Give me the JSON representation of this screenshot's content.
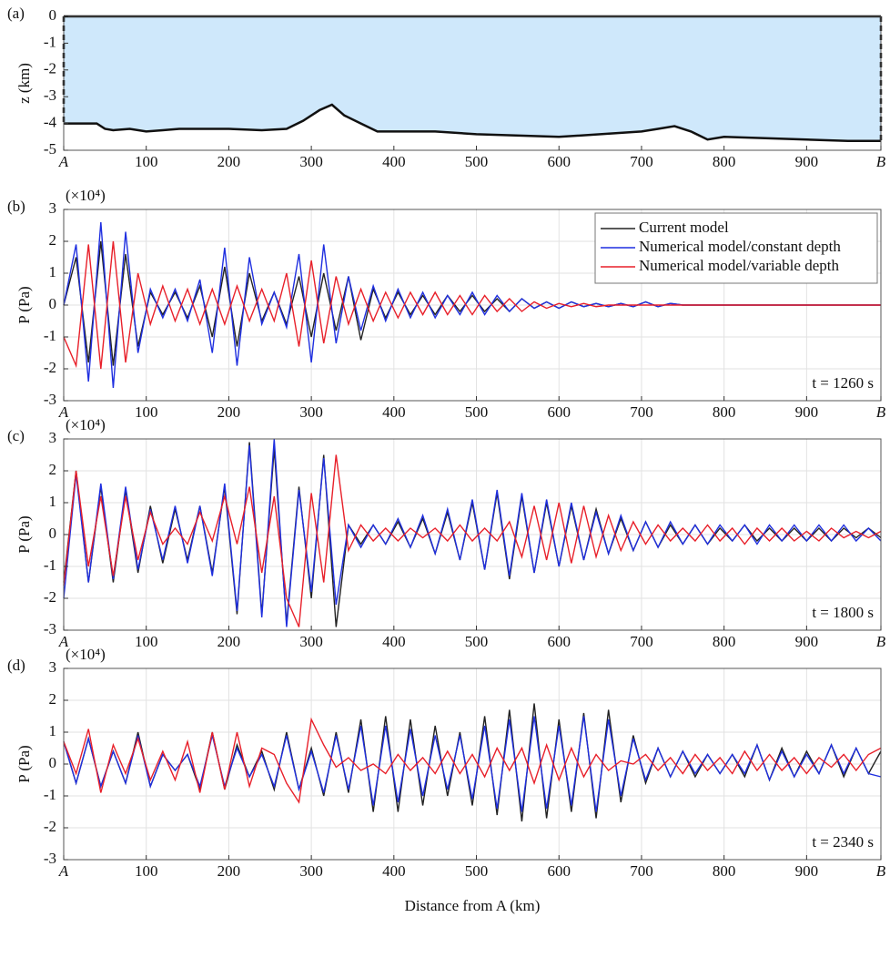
{
  "chart_data": [
    {
      "type": "area",
      "panel_label": "(a)",
      "ylabel": "z (km)",
      "color": "#cfe8fb",
      "grid": false,
      "xlim": [
        0,
        990
      ],
      "ylim": [
        -5,
        0
      ],
      "yticks": [
        -5,
        -4,
        -3,
        -2,
        -1,
        0
      ],
      "xticks": [
        {
          "value": 0,
          "label": "A"
        },
        100,
        200,
        300,
        400,
        500,
        600,
        700,
        800,
        900,
        {
          "value": 990,
          "label": "B"
        }
      ],
      "x": [
        0,
        40,
        50,
        60,
        80,
        100,
        120,
        140,
        200,
        240,
        270,
        290,
        310,
        325,
        340,
        360,
        380,
        400,
        450,
        500,
        600,
        650,
        700,
        720,
        740,
        760,
        780,
        800,
        850,
        900,
        950,
        990
      ],
      "values": [
        -4.0,
        -4.0,
        -4.2,
        -4.25,
        -4.2,
        -4.3,
        -4.25,
        -4.2,
        -4.2,
        -4.25,
        -4.2,
        -3.9,
        -3.5,
        -3.3,
        -3.7,
        -4.0,
        -4.3,
        -4.3,
        -4.3,
        -4.4,
        -4.5,
        -4.4,
        -4.3,
        -4.2,
        -4.1,
        -4.3,
        -4.6,
        -4.5,
        -4.55,
        -4.6,
        -4.65,
        -4.65
      ]
    },
    {
      "type": "line",
      "panel_label": "(b)",
      "ylabel": "P (Pa)",
      "y_multiplier": "(×10⁴)",
      "annotation": "t = 1260 s",
      "grid": true,
      "legend": "upper right",
      "xlim": [
        0,
        990
      ],
      "ylim": [
        -3,
        3
      ],
      "yticks": [
        -3,
        -2,
        -1,
        0,
        1,
        2,
        3
      ],
      "xticks": [
        {
          "value": 0,
          "label": "A"
        },
        100,
        200,
        300,
        400,
        500,
        600,
        700,
        800,
        900,
        {
          "value": 990,
          "label": "B"
        }
      ],
      "x": [
        0,
        15,
        30,
        45,
        60,
        75,
        90,
        105,
        120,
        135,
        150,
        165,
        180,
        195,
        210,
        225,
        240,
        255,
        270,
        285,
        300,
        315,
        330,
        345,
        360,
        375,
        390,
        405,
        420,
        435,
        450,
        465,
        480,
        495,
        510,
        525,
        540,
        555,
        570,
        585,
        600,
        615,
        630,
        645,
        660,
        675,
        690,
        705,
        720,
        735,
        750,
        765,
        780,
        795,
        810,
        825,
        840,
        855,
        870,
        885,
        900,
        915,
        930,
        945,
        960,
        975,
        990
      ],
      "series": [
        {
          "name": "Current model",
          "color": "#222222",
          "values": [
            0,
            1.5,
            -1.8,
            2.0,
            -1.9,
            1.6,
            -1.3,
            0.4,
            -0.3,
            0.4,
            -0.4,
            0.6,
            -1.0,
            1.2,
            -1.3,
            1.0,
            -0.5,
            0.4,
            -0.6,
            0.9,
            -1.0,
            1.0,
            -0.8,
            0.9,
            -1.1,
            0.5,
            -0.4,
            0.4,
            -0.3,
            0.3,
            -0.3,
            0.3,
            -0.2,
            0.3,
            -0.2,
            0.2,
            -0.2,
            0.2,
            -0.1,
            0.1,
            -0.1,
            0.1,
            -0.05,
            0.05,
            -0.05,
            0.05,
            -0.05,
            0.1,
            -0.05,
            0.05,
            0,
            0,
            0,
            0,
            0,
            0,
            0,
            0,
            0,
            0,
            0,
            0,
            0,
            0,
            0,
            0,
            0
          ]
        },
        {
          "name": "Numerical model/constant depth",
          "color": "#1f2fe0",
          "values": [
            0,
            1.9,
            -2.4,
            2.6,
            -2.6,
            2.3,
            -1.5,
            0.5,
            -0.4,
            0.5,
            -0.5,
            0.8,
            -1.5,
            1.8,
            -1.9,
            1.5,
            -0.6,
            0.4,
            -0.7,
            1.6,
            -1.8,
            1.9,
            -1.2,
            0.9,
            -0.8,
            0.6,
            -0.5,
            0.5,
            -0.4,
            0.4,
            -0.4,
            0.3,
            -0.3,
            0.4,
            -0.3,
            0.3,
            -0.2,
            0.2,
            -0.1,
            0.1,
            -0.1,
            0.1,
            -0.05,
            0.05,
            -0.05,
            0.05,
            -0.05,
            0.1,
            -0.05,
            0.05,
            0,
            0,
            0,
            0,
            0,
            0,
            0,
            0,
            0,
            0,
            0,
            0,
            0,
            0,
            0,
            0,
            0
          ]
        },
        {
          "name": "Numerical model/variable depth",
          "color": "#e8202a",
          "values": [
            -1.0,
            -1.9,
            1.9,
            -2.0,
            2.0,
            -1.8,
            1.0,
            -0.6,
            0.6,
            -0.5,
            0.5,
            -0.6,
            0.5,
            -0.6,
            0.6,
            -0.5,
            0.5,
            -0.5,
            1.0,
            -1.3,
            1.4,
            -1.2,
            0.9,
            -0.6,
            0.5,
            -0.5,
            0.4,
            -0.4,
            0.4,
            -0.3,
            0.4,
            -0.3,
            0.3,
            -0.3,
            0.3,
            -0.2,
            0.2,
            -0.2,
            0.1,
            -0.1,
            0.05,
            -0.05,
            0.05,
            -0.05,
            0,
            0,
            0,
            0,
            0,
            0,
            0,
            0,
            0,
            0,
            0,
            0,
            0,
            0,
            0,
            0,
            0,
            0,
            0,
            0,
            0,
            0,
            0
          ]
        }
      ]
    },
    {
      "type": "line",
      "panel_label": "(c)",
      "ylabel": "P (Pa)",
      "y_multiplier": "(×10⁴)",
      "annotation": "t = 1800 s",
      "grid": true,
      "xlim": [
        0,
        990
      ],
      "ylim": [
        -3,
        3
      ],
      "yticks": [
        -3,
        -2,
        -1,
        0,
        1,
        2,
        3
      ],
      "xticks": [
        {
          "value": 0,
          "label": "A"
        },
        100,
        200,
        300,
        400,
        500,
        600,
        700,
        800,
        900,
        {
          "value": 990,
          "label": "B"
        }
      ],
      "x": [
        0,
        15,
        30,
        45,
        60,
        75,
        90,
        105,
        120,
        135,
        150,
        165,
        180,
        195,
        210,
        225,
        240,
        255,
        270,
        285,
        300,
        315,
        330,
        345,
        360,
        375,
        390,
        405,
        420,
        435,
        450,
        465,
        480,
        495,
        510,
        525,
        540,
        555,
        570,
        585,
        600,
        615,
        630,
        645,
        660,
        675,
        690,
        705,
        720,
        735,
        750,
        765,
        780,
        795,
        810,
        825,
        840,
        855,
        870,
        885,
        900,
        915,
        930,
        945,
        960,
        975,
        990
      ],
      "series": [
        {
          "name": "Current model",
          "color": "#222222",
          "values": [
            -1.5,
            2.0,
            -1.5,
            1.5,
            -1.5,
            1.4,
            -1.2,
            0.9,
            -0.9,
            0.8,
            -0.8,
            0.9,
            -1.2,
            1.5,
            -2.5,
            2.9,
            -2.5,
            2.7,
            -2.8,
            1.5,
            -2.0,
            2.5,
            -2.9,
            0.3,
            -0.3,
            0.3,
            -0.3,
            0.4,
            -0.4,
            0.5,
            -0.6,
            0.7,
            -0.8,
            1.0,
            -1.1,
            1.3,
            -1.4,
            1.2,
            -1.2,
            1.0,
            -1.0,
            0.9,
            -0.8,
            0.8,
            -0.6,
            0.5,
            -0.5,
            0.4,
            -0.4,
            0.3,
            -0.3,
            0.3,
            -0.3,
            0.2,
            -0.2,
            0.3,
            -0.2,
            0.2,
            -0.2,
            0.2,
            -0.2,
            0.2,
            -0.2,
            0.2,
            -0.1,
            0.2,
            -0.1
          ]
        },
        {
          "name": "Numerical model/constant depth",
          "color": "#1f2fe0",
          "values": [
            -2.0,
            1.9,
            -1.5,
            1.6,
            -1.4,
            1.5,
            -1.1,
            0.8,
            -0.8,
            0.9,
            -0.9,
            0.9,
            -1.3,
            1.6,
            -2.4,
            2.8,
            -2.6,
            3.0,
            -2.9,
            1.4,
            -1.8,
            2.4,
            -2.2,
            0.3,
            -0.4,
            0.3,
            -0.3,
            0.5,
            -0.4,
            0.6,
            -0.6,
            0.8,
            -0.8,
            1.1,
            -1.1,
            1.4,
            -1.3,
            1.3,
            -1.2,
            1.1,
            -1.0,
            1.0,
            -0.8,
            0.7,
            -0.6,
            0.6,
            -0.5,
            0.4,
            -0.4,
            0.4,
            -0.3,
            0.3,
            -0.3,
            0.3,
            -0.2,
            0.3,
            -0.3,
            0.3,
            -0.2,
            0.3,
            -0.2,
            0.3,
            -0.2,
            0.3,
            -0.2,
            0.2,
            -0.2
          ]
        },
        {
          "name": "Numerical model/variable depth",
          "color": "#e8202a",
          "values": [
            -1.6,
            2.0,
            -1.0,
            1.2,
            -1.3,
            1.2,
            -0.8,
            0.7,
            -0.3,
            0.2,
            -0.3,
            0.7,
            -0.2,
            1.2,
            -0.3,
            1.5,
            -1.2,
            1.2,
            -2.0,
            -2.9,
            1.3,
            -1.5,
            2.5,
            -0.5,
            0.3,
            -0.2,
            0.2,
            -0.2,
            0.2,
            -0.1,
            0.2,
            -0.2,
            0.3,
            -0.2,
            0.2,
            -0.2,
            0.4,
            -0.7,
            0.9,
            -0.8,
            1.0,
            -0.9,
            0.9,
            -0.7,
            0.6,
            -0.5,
            0.4,
            -0.3,
            0.3,
            -0.2,
            0.2,
            -0.2,
            0.3,
            -0.2,
            0.2,
            -0.3,
            0.2,
            -0.2,
            0.2,
            -0.2,
            0.1,
            -0.2,
            0.2,
            -0.1,
            0.1,
            -0.1,
            0.1
          ]
        }
      ]
    },
    {
      "type": "line",
      "panel_label": "(d)",
      "ylabel": "P (Pa)",
      "y_multiplier": "(×10⁴)",
      "annotation": "t = 2340 s",
      "xlabel": "Distance from A (km)",
      "grid": true,
      "xlim": [
        0,
        990
      ],
      "ylim": [
        -3,
        3
      ],
      "yticks": [
        -3,
        -2,
        -1,
        0,
        1,
        2,
        3
      ],
      "xticks": [
        {
          "value": 0,
          "label": "A"
        },
        100,
        200,
        300,
        400,
        500,
        600,
        700,
        800,
        900,
        {
          "value": 990,
          "label": "B"
        }
      ],
      "x": [
        0,
        15,
        30,
        45,
        60,
        75,
        90,
        105,
        120,
        135,
        150,
        165,
        180,
        195,
        210,
        225,
        240,
        255,
        270,
        285,
        300,
        315,
        330,
        345,
        360,
        375,
        390,
        405,
        420,
        435,
        450,
        465,
        480,
        495,
        510,
        525,
        540,
        555,
        570,
        585,
        600,
        615,
        630,
        645,
        660,
        675,
        690,
        705,
        720,
        735,
        750,
        765,
        780,
        795,
        810,
        825,
        840,
        855,
        870,
        885,
        900,
        915,
        930,
        945,
        960,
        975,
        990
      ],
      "series": [
        {
          "name": "Current model",
          "color": "#222222",
          "values": [
            0.7,
            -0.6,
            0.8,
            -0.7,
            0.4,
            -0.6,
            1.0,
            -0.7,
            0.3,
            -0.2,
            0.3,
            -0.8,
            1.0,
            -0.8,
            0.6,
            -0.4,
            0.4,
            -0.8,
            1.0,
            -0.8,
            0.5,
            -1.0,
            1.0,
            -0.9,
            1.4,
            -1.5,
            1.5,
            -1.5,
            1.4,
            -1.3,
            1.2,
            -1.0,
            1.0,
            -1.3,
            1.5,
            -1.6,
            1.7,
            -1.8,
            1.9,
            -1.7,
            1.4,
            -1.5,
            1.6,
            -1.7,
            1.7,
            -1.2,
            0.9,
            -0.6,
            0.5,
            -0.4,
            0.4,
            -0.4,
            0.3,
            -0.3,
            0.3,
            -0.4,
            0.6,
            -0.5,
            0.5,
            -0.4,
            0.4,
            -0.3,
            0.6,
            -0.4,
            0.5,
            -0.3,
            0.4
          ]
        },
        {
          "name": "Numerical model/constant depth",
          "color": "#1f2fe0",
          "values": [
            0.7,
            -0.6,
            0.8,
            -0.7,
            0.4,
            -0.6,
            0.9,
            -0.7,
            0.3,
            -0.2,
            0.3,
            -0.7,
            0.9,
            -0.7,
            0.5,
            -0.4,
            0.3,
            -0.7,
            0.9,
            -0.8,
            0.4,
            -0.9,
            0.9,
            -0.8,
            1.2,
            -1.3,
            1.2,
            -1.2,
            1.1,
            -1.0,
            0.9,
            -0.8,
            0.9,
            -1.1,
            1.2,
            -1.4,
            1.4,
            -1.5,
            1.5,
            -1.4,
            1.2,
            -1.3,
            1.5,
            -1.5,
            1.4,
            -1.0,
            0.8,
            -0.5,
            0.5,
            -0.4,
            0.4,
            -0.3,
            0.3,
            -0.3,
            0.3,
            -0.3,
            0.6,
            -0.5,
            0.4,
            -0.4,
            0.3,
            -0.3,
            0.6,
            -0.3,
            0.5,
            -0.3,
            -0.4
          ]
        },
        {
          "name": "Numerical model/variable depth",
          "color": "#e8202a",
          "values": [
            0.7,
            -0.3,
            1.1,
            -0.9,
            0.6,
            -0.3,
            0.8,
            -0.5,
            0.4,
            -0.5,
            0.7,
            -0.9,
            1.0,
            -0.8,
            1.0,
            -0.7,
            0.5,
            0.3,
            -0.6,
            -1.2,
            1.4,
            0.6,
            -0.1,
            0.2,
            -0.2,
            0.0,
            -0.3,
            0.3,
            -0.2,
            0.2,
            -0.3,
            0.4,
            -0.3,
            0.3,
            -0.4,
            0.5,
            -0.2,
            0.5,
            -0.6,
            0.6,
            -0.5,
            0.5,
            -0.4,
            0.3,
            -0.2,
            0.1,
            0.0,
            0.3,
            -0.2,
            0.2,
            -0.3,
            0.3,
            -0.2,
            0.2,
            -0.3,
            0.4,
            -0.2,
            0.3,
            -0.2,
            0.2,
            -0.3,
            0.2,
            -0.1,
            0.3,
            -0.2,
            0.3,
            0.5
          ]
        }
      ]
    }
  ]
}
